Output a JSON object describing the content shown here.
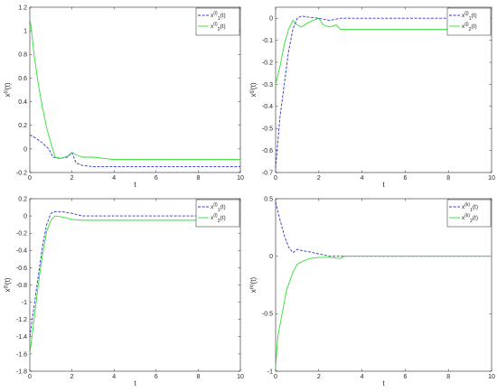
{
  "chart_data": [
    {
      "type": "line",
      "xlabel": "t",
      "ylabel_base": "x",
      "ylabel_sup": "(i)",
      "ylabel_tail": "(t)",
      "xlim": [
        0,
        10
      ],
      "ylim": [
        -0.2,
        1.2
      ],
      "xticks": [
        "0",
        "2",
        "4",
        "6",
        "8",
        "10"
      ],
      "yticks": [
        "-0.2",
        "0",
        "0.2",
        "0.4",
        "0.6",
        "0.8",
        "1",
        "1.2"
      ],
      "yticks_values": [
        -0.2,
        0,
        0.2,
        0.4,
        0.6,
        0.8,
        1,
        1.2
      ],
      "legend_position": "top-right",
      "series": [
        {
          "name_base": "x",
          "name_sub": "1",
          "name_sup": "(i)",
          "name_tail": "(t)",
          "color": "#3333cc",
          "style": "dashed",
          "x": [
            0,
            0.3,
            0.6,
            0.9,
            1.1,
            1.4,
            1.8,
            2.0,
            2.2,
            2.5,
            3,
            4,
            5,
            6,
            8,
            10
          ],
          "y": [
            0.12,
            0.09,
            0.05,
            0.0,
            -0.07,
            -0.08,
            -0.07,
            -0.03,
            -0.12,
            -0.14,
            -0.15,
            -0.15,
            -0.15,
            -0.15,
            -0.15,
            -0.15
          ]
        },
        {
          "name_base": "x",
          "name_sub": "2",
          "name_sup": "(i)",
          "name_tail": "(t)",
          "color": "#33dd33",
          "style": "solid",
          "x": [
            0,
            0.05,
            0.2,
            0.4,
            0.6,
            0.8,
            1.0,
            1.2,
            1.5,
            1.8,
            2.0,
            2.2,
            2.5,
            3,
            3.5,
            4,
            5,
            6,
            8,
            10
          ],
          "y": [
            1.1,
            1.05,
            0.8,
            0.55,
            0.35,
            0.18,
            0.05,
            -0.07,
            -0.08,
            -0.06,
            -0.03,
            -0.05,
            -0.07,
            -0.07,
            -0.08,
            -0.09,
            -0.09,
            -0.09,
            -0.09,
            -0.09
          ]
        }
      ]
    },
    {
      "type": "line",
      "xlabel": "t",
      "ylabel_base": "x",
      "ylabel_sup": "(j)",
      "ylabel_tail": "(t)",
      "xlim": [
        0,
        10
      ],
      "ylim": [
        -0.7,
        0.05
      ],
      "xticks": [
        "0",
        "2",
        "4",
        "6",
        "8",
        "10"
      ],
      "yticks": [
        "-0.7",
        "-0.6",
        "-0.5",
        "-0.4",
        "-0.3",
        "-0.2",
        "-0.1",
        "0"
      ],
      "yticks_values": [
        -0.7,
        -0.6,
        -0.5,
        -0.4,
        -0.3,
        -0.2,
        -0.1,
        0
      ],
      "legend_position": "top-right",
      "series": [
        {
          "name_base": "x",
          "name_sub": "1",
          "name_sup": "(j)",
          "name_tail": "(t)",
          "color": "#3333cc",
          "style": "dashed",
          "x": [
            0,
            0.2,
            0.4,
            0.6,
            0.8,
            1.0,
            1.2,
            1.5,
            2.0,
            2.5,
            3,
            4,
            6,
            8,
            10
          ],
          "y": [
            -0.68,
            -0.45,
            -0.3,
            -0.15,
            -0.05,
            0.0,
            0.01,
            0.005,
            0.0,
            -0.01,
            0.0,
            0.0,
            0.0,
            0.0,
            0.0
          ]
        },
        {
          "name_base": "x",
          "name_sub": "2",
          "name_sup": "(j)",
          "name_tail": "(t)",
          "color": "#33dd33",
          "style": "solid",
          "x": [
            0,
            0.2,
            0.4,
            0.6,
            0.8,
            1.0,
            1.2,
            1.5,
            2.0,
            2.2,
            2.5,
            2.8,
            3,
            4,
            6,
            8,
            10
          ],
          "y": [
            -0.3,
            -0.22,
            -0.12,
            -0.05,
            -0.01,
            -0.03,
            -0.04,
            -0.02,
            0.0,
            -0.03,
            -0.04,
            -0.03,
            -0.05,
            -0.05,
            -0.05,
            -0.05,
            -0.05
          ]
        }
      ]
    },
    {
      "type": "line",
      "xlabel": "t",
      "ylabel_base": "x",
      "ylabel_sup": "(l)",
      "ylabel_tail": "(t)",
      "xlim": [
        0,
        10
      ],
      "ylim": [
        -1.8,
        0.2
      ],
      "xticks": [
        "0",
        "2",
        "4",
        "6",
        "8",
        "10"
      ],
      "yticks": [
        "-1.8",
        "-1.6",
        "-1.4",
        "-1.2",
        "-1",
        "-0.8",
        "-0.6",
        "-0.4",
        "-0.2",
        "0",
        "0.2"
      ],
      "yticks_values": [
        -1.8,
        -1.6,
        -1.4,
        -1.2,
        -1,
        -0.8,
        -0.6,
        -0.4,
        -0.2,
        0,
        0.2
      ],
      "legend_position": "top-right",
      "series": [
        {
          "name_base": "x",
          "name_sub": "1",
          "name_sup": "(l)",
          "name_tail": "(t)",
          "color": "#3333cc",
          "style": "dashed",
          "x": [
            0,
            0.2,
            0.4,
            0.6,
            0.8,
            1.0,
            1.2,
            1.5,
            2.0,
            2.5,
            3,
            4,
            6,
            8,
            10
          ],
          "y": [
            -1.4,
            -1.05,
            -0.7,
            -0.35,
            -0.1,
            0.03,
            0.05,
            0.05,
            0.03,
            0.0,
            0.0,
            0.0,
            0.0,
            0.0,
            0.0
          ]
        },
        {
          "name_base": "x",
          "name_sub": "2",
          "name_sup": "(l)",
          "name_tail": "(t)",
          "color": "#33dd33",
          "style": "solid",
          "x": [
            0,
            0.2,
            0.4,
            0.6,
            0.8,
            1.0,
            1.2,
            1.5,
            2.0,
            2.5,
            3,
            4,
            6,
            8,
            10
          ],
          "y": [
            -1.6,
            -1.2,
            -0.8,
            -0.45,
            -0.18,
            -0.05,
            0.0,
            -0.01,
            -0.04,
            -0.05,
            -0.05,
            -0.05,
            -0.05,
            -0.05,
            -0.05
          ]
        }
      ]
    },
    {
      "type": "line",
      "xlabel": "t",
      "ylabel_base": "x",
      "ylabel_sup": "(k)",
      "ylabel_tail": "(t)",
      "xlim": [
        0,
        10
      ],
      "ylim": [
        -1.0,
        0.5
      ],
      "xticks": [
        "0",
        "2",
        "4",
        "6",
        "8",
        "10"
      ],
      "yticks": [
        "-1",
        "-0.5",
        "0",
        "0.5"
      ],
      "yticks_values": [
        -1,
        -0.5,
        0,
        0.5
      ],
      "legend_position": "top-right",
      "series": [
        {
          "name_base": "x",
          "name_sub": "1",
          "name_sup": "(k)",
          "name_tail": "(t)",
          "color": "#3333cc",
          "style": "dashed",
          "x": [
            0,
            0.2,
            0.4,
            0.6,
            0.8,
            1.0,
            1.2,
            1.5,
            2.0,
            2.5,
            3,
            4,
            6,
            8,
            10
          ],
          "y": [
            0.47,
            0.32,
            0.18,
            0.08,
            0.03,
            0.06,
            0.05,
            0.04,
            0.02,
            0.0,
            0.0,
            0.0,
            0.0,
            0.0,
            0.0
          ]
        },
        {
          "name_base": "x",
          "name_sub": "2",
          "name_sup": "(k)",
          "name_tail": "(t)",
          "color": "#33dd33",
          "style": "solid",
          "x": [
            0,
            0.1,
            0.3,
            0.5,
            0.8,
            1.0,
            1.3,
            1.6,
            2.0,
            2.5,
            3,
            3.2,
            4,
            6,
            8,
            10
          ],
          "y": [
            -0.97,
            -0.7,
            -0.5,
            -0.3,
            -0.14,
            -0.07,
            -0.04,
            -0.02,
            -0.01,
            -0.01,
            -0.02,
            0.0,
            0.0,
            0.0,
            0.0,
            0.0
          ]
        }
      ]
    }
  ]
}
